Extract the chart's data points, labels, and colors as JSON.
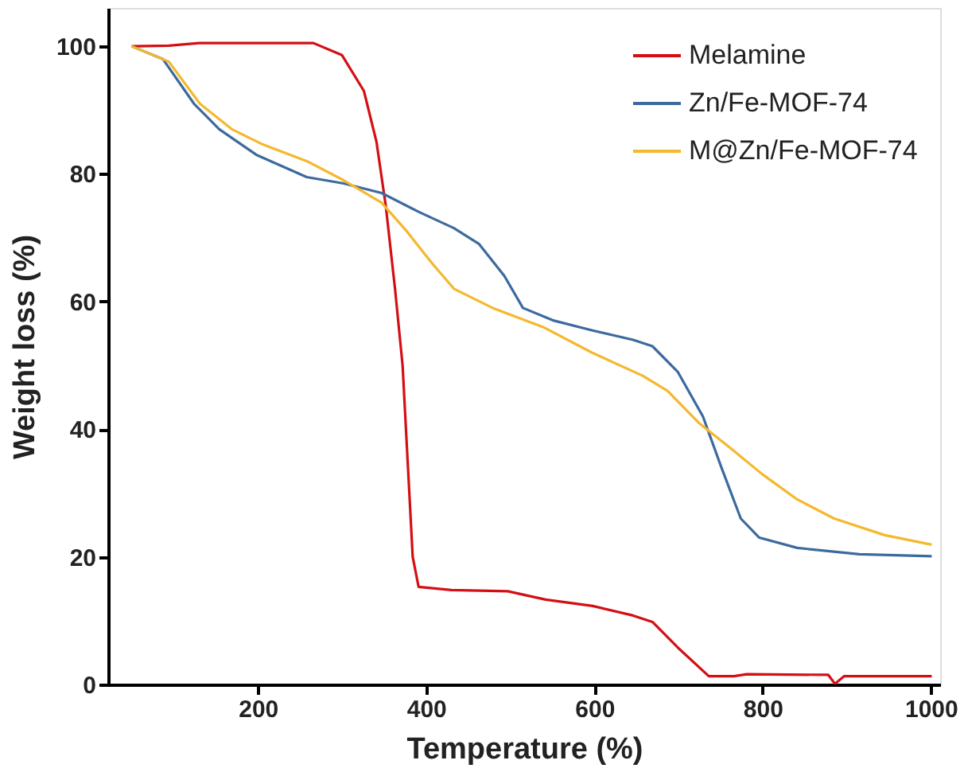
{
  "chart_data": {
    "type": "line",
    "xlabel": "Temperature (%)",
    "ylabel": "Weight loss (%)",
    "xlim": [
      22,
      1011
    ],
    "ylim": [
      0,
      106
    ],
    "xticks": [
      200,
      400,
      600,
      800,
      1000
    ],
    "yticks": [
      0,
      20,
      40,
      60,
      80,
      100
    ],
    "grid": false,
    "legend": "top right",
    "marker": "none",
    "line_style": "solid",
    "series": [
      {
        "name": "Melamine",
        "color": "#d40f14",
        "x": [
          50,
          94,
          130,
          266,
          300,
          326,
          341,
          352,
          363,
          372,
          378,
          384,
          391,
          430,
          497,
          542,
          598,
          646,
          669,
          699,
          736,
          766,
          781,
          878,
          886,
          897,
          1001
        ],
        "values": [
          100,
          100.1,
          100.5,
          100.5,
          98.6,
          93,
          85,
          75,
          62,
          50,
          35,
          20,
          15.3,
          14.8,
          14.6,
          13.3,
          12.3,
          10.8,
          9.8,
          5.8,
          1.3,
          1.3,
          1.6,
          1.5,
          0.1,
          1.3,
          1.3
        ]
      },
      {
        "name": "Zn/Fe-MOF-74",
        "color": "#3d6a9e",
        "x": [
          50,
          87,
          124,
          154,
          198,
          258,
          302,
          347,
          392,
          433,
          463,
          493,
          515,
          552,
          597,
          646,
          669,
          699,
          729,
          751,
          774,
          796,
          841,
          915,
          1001
        ],
        "values": [
          100,
          98,
          91,
          87,
          83,
          79.5,
          78.5,
          77,
          74,
          71.5,
          69,
          64,
          59,
          57,
          55.5,
          54,
          53,
          49,
          42,
          34,
          26,
          23,
          21.4,
          20.4,
          20.1
        ]
      },
      {
        "name": "M@Zn/Fe-MOF-74",
        "color": "#f5b82e",
        "x": [
          50,
          94,
          131,
          169,
          206,
          258,
          302,
          347,
          377,
          407,
          433,
          479,
          539,
          597,
          657,
          687,
          724,
          762,
          799,
          841,
          885,
          945,
          1001
        ],
        "values": [
          100,
          97.6,
          91,
          87,
          84.6,
          82,
          79,
          75.5,
          71,
          66,
          62,
          59,
          56,
          52,
          48.4,
          46,
          41,
          37,
          33,
          29,
          26,
          23.4,
          21.9
        ]
      }
    ]
  }
}
